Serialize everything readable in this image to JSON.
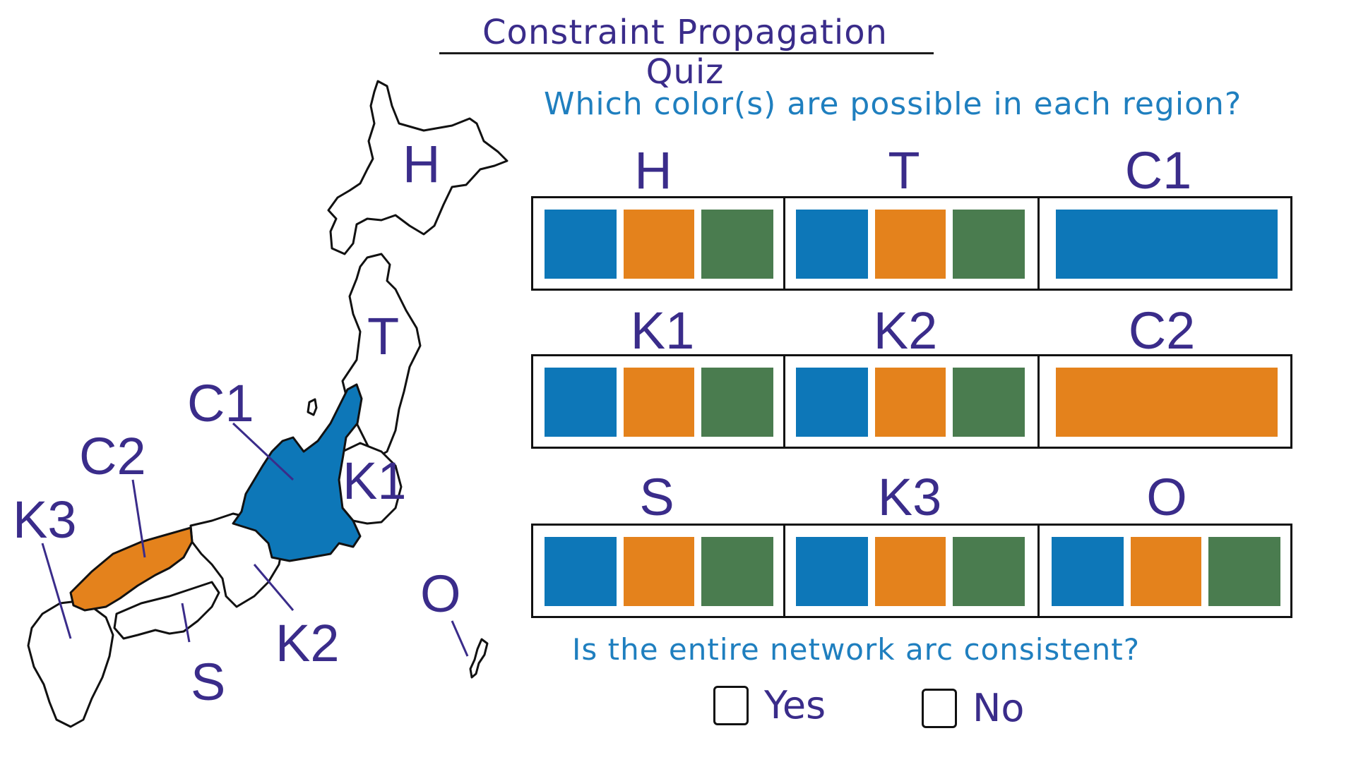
{
  "title": "Constraint Propagation Quiz",
  "question": "Which color(s) are possible in each region?",
  "colors": {
    "blue": "#0d77b8",
    "orange": "#e4821c",
    "green": "#4a7c4f"
  },
  "grid": [
    [
      {
        "label": "H",
        "options": [
          "blue",
          "orange",
          "green"
        ]
      },
      {
        "label": "T",
        "options": [
          "blue",
          "orange",
          "green"
        ]
      },
      {
        "label": "C1",
        "options": [
          "blue"
        ]
      }
    ],
    [
      {
        "label": "K1",
        "options": [
          "blue",
          "orange",
          "green"
        ]
      },
      {
        "label": "K2",
        "options": [
          "blue",
          "orange",
          "green"
        ]
      },
      {
        "label": "C2",
        "options": [
          "orange"
        ]
      }
    ],
    [
      {
        "label": "S",
        "options": [
          "blue",
          "orange",
          "green"
        ]
      },
      {
        "label": "K3",
        "options": [
          "blue",
          "orange",
          "green"
        ]
      },
      {
        "label": "O",
        "options": [
          "blue",
          "orange",
          "green"
        ]
      }
    ]
  ],
  "map": {
    "labels": {
      "H": "H",
      "T": "T",
      "C1": "C1",
      "C2": "C2",
      "K1": "K1",
      "K2": "K2",
      "K3": "K3",
      "S": "S",
      "O": "O"
    },
    "colored_regions": {
      "C1": "blue",
      "C2": "orange"
    }
  },
  "bottom_question": "Is the entire network arc consistent?",
  "choices": {
    "yes": "Yes",
    "no": "No"
  }
}
